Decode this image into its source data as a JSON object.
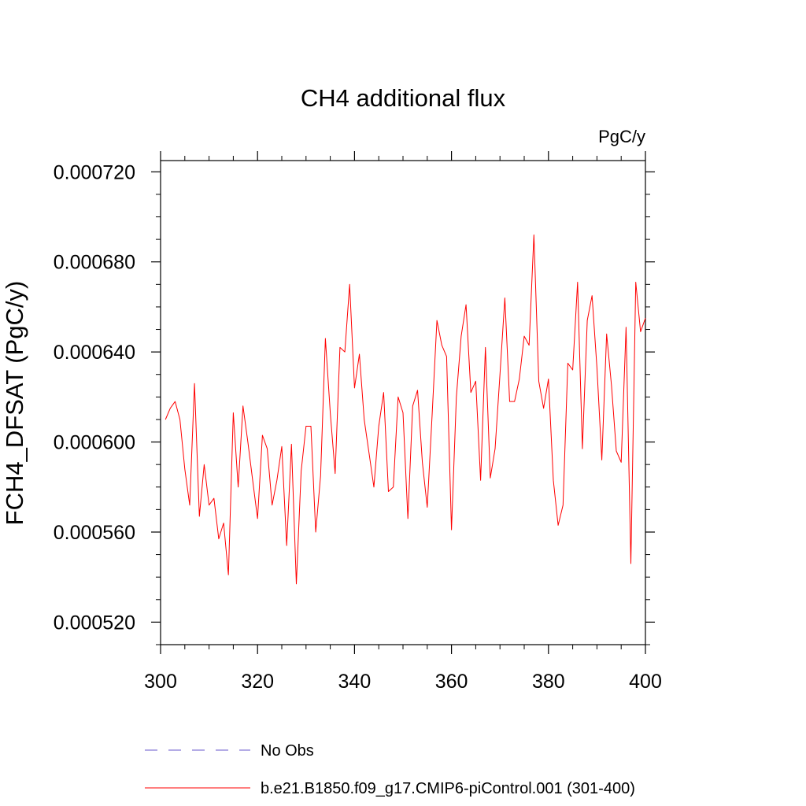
{
  "chart_data": {
    "type": "line",
    "title": "CH4 additional flux",
    "units": "PgC/y",
    "ylabel": "FCH4_DFSAT  (PgC/y)",
    "xlabel": "",
    "xlim": [
      300,
      400
    ],
    "ylim": [
      0.00051,
      0.000725
    ],
    "xticks": [
      300,
      320,
      340,
      360,
      380,
      400
    ],
    "yticks": [
      0.00052,
      0.00056,
      0.0006,
      0.00064,
      0.00068,
      0.00072
    ],
    "ytick_labels": [
      "0.000520",
      "0.000560",
      "0.000600",
      "0.000640",
      "0.000680",
      "0.000720"
    ],
    "grid": false,
    "legend_position": "bottom",
    "legend": [
      {
        "label": "No Obs",
        "color": "#6a5acd",
        "style": "dashed"
      },
      {
        "label": "b.e21.B1850.f09_g17.CMIP6-piControl.001 (301-400)",
        "color": "#ff0000",
        "style": "solid"
      }
    ],
    "series": [
      {
        "name": "b.e21.B1850.f09_g17.CMIP6-piControl.001 (301-400)",
        "color": "#ff0000",
        "x": [
          301,
          302,
          303,
          304,
          305,
          306,
          307,
          308,
          309,
          310,
          311,
          312,
          313,
          314,
          315,
          316,
          317,
          318,
          319,
          320,
          321,
          322,
          323,
          324,
          325,
          326,
          327,
          328,
          329,
          330,
          331,
          332,
          333,
          334,
          335,
          336,
          337,
          338,
          339,
          340,
          341,
          342,
          343,
          344,
          345,
          346,
          347,
          348,
          349,
          350,
          351,
          352,
          353,
          354,
          355,
          356,
          357,
          358,
          359,
          360,
          361,
          362,
          363,
          364,
          365,
          366,
          367,
          368,
          369,
          370,
          371,
          372,
          373,
          374,
          375,
          376,
          377,
          378,
          379,
          380,
          381,
          382,
          383,
          384,
          385,
          386,
          387,
          388,
          389,
          390,
          391,
          392,
          393,
          394,
          395,
          396,
          397,
          398,
          399,
          400
        ],
        "y": [
          0.00061,
          0.000615,
          0.000618,
          0.00061,
          0.000588,
          0.000572,
          0.000626,
          0.000567,
          0.00059,
          0.000572,
          0.000575,
          0.000557,
          0.000564,
          0.000541,
          0.000613,
          0.00058,
          0.000616,
          0.0006,
          0.000583,
          0.000566,
          0.000603,
          0.000597,
          0.000572,
          0.000583,
          0.000598,
          0.000554,
          0.000599,
          0.000537,
          0.000587,
          0.000607,
          0.000607,
          0.00056,
          0.000585,
          0.000646,
          0.000613,
          0.000586,
          0.000642,
          0.00064,
          0.00067,
          0.000624,
          0.000639,
          0.00061,
          0.000595,
          0.00058,
          0.000607,
          0.000622,
          0.000578,
          0.00058,
          0.00062,
          0.000613,
          0.000566,
          0.000616,
          0.000623,
          0.000591,
          0.000571,
          0.000612,
          0.000654,
          0.000643,
          0.000638,
          0.000561,
          0.00062,
          0.000647,
          0.000661,
          0.000622,
          0.000627,
          0.000583,
          0.000642,
          0.000584,
          0.000597,
          0.00063,
          0.000664,
          0.000618,
          0.000618,
          0.000628,
          0.000647,
          0.000643,
          0.000692,
          0.000627,
          0.000615,
          0.000628,
          0.000583,
          0.000563,
          0.000572,
          0.000635,
          0.000632,
          0.000671,
          0.000597,
          0.000654,
          0.000665,
          0.000633,
          0.000592,
          0.000648,
          0.000625,
          0.000596,
          0.000591,
          0.000651,
          0.000546,
          0.000671,
          0.000649,
          0.000655
        ]
      }
    ]
  }
}
